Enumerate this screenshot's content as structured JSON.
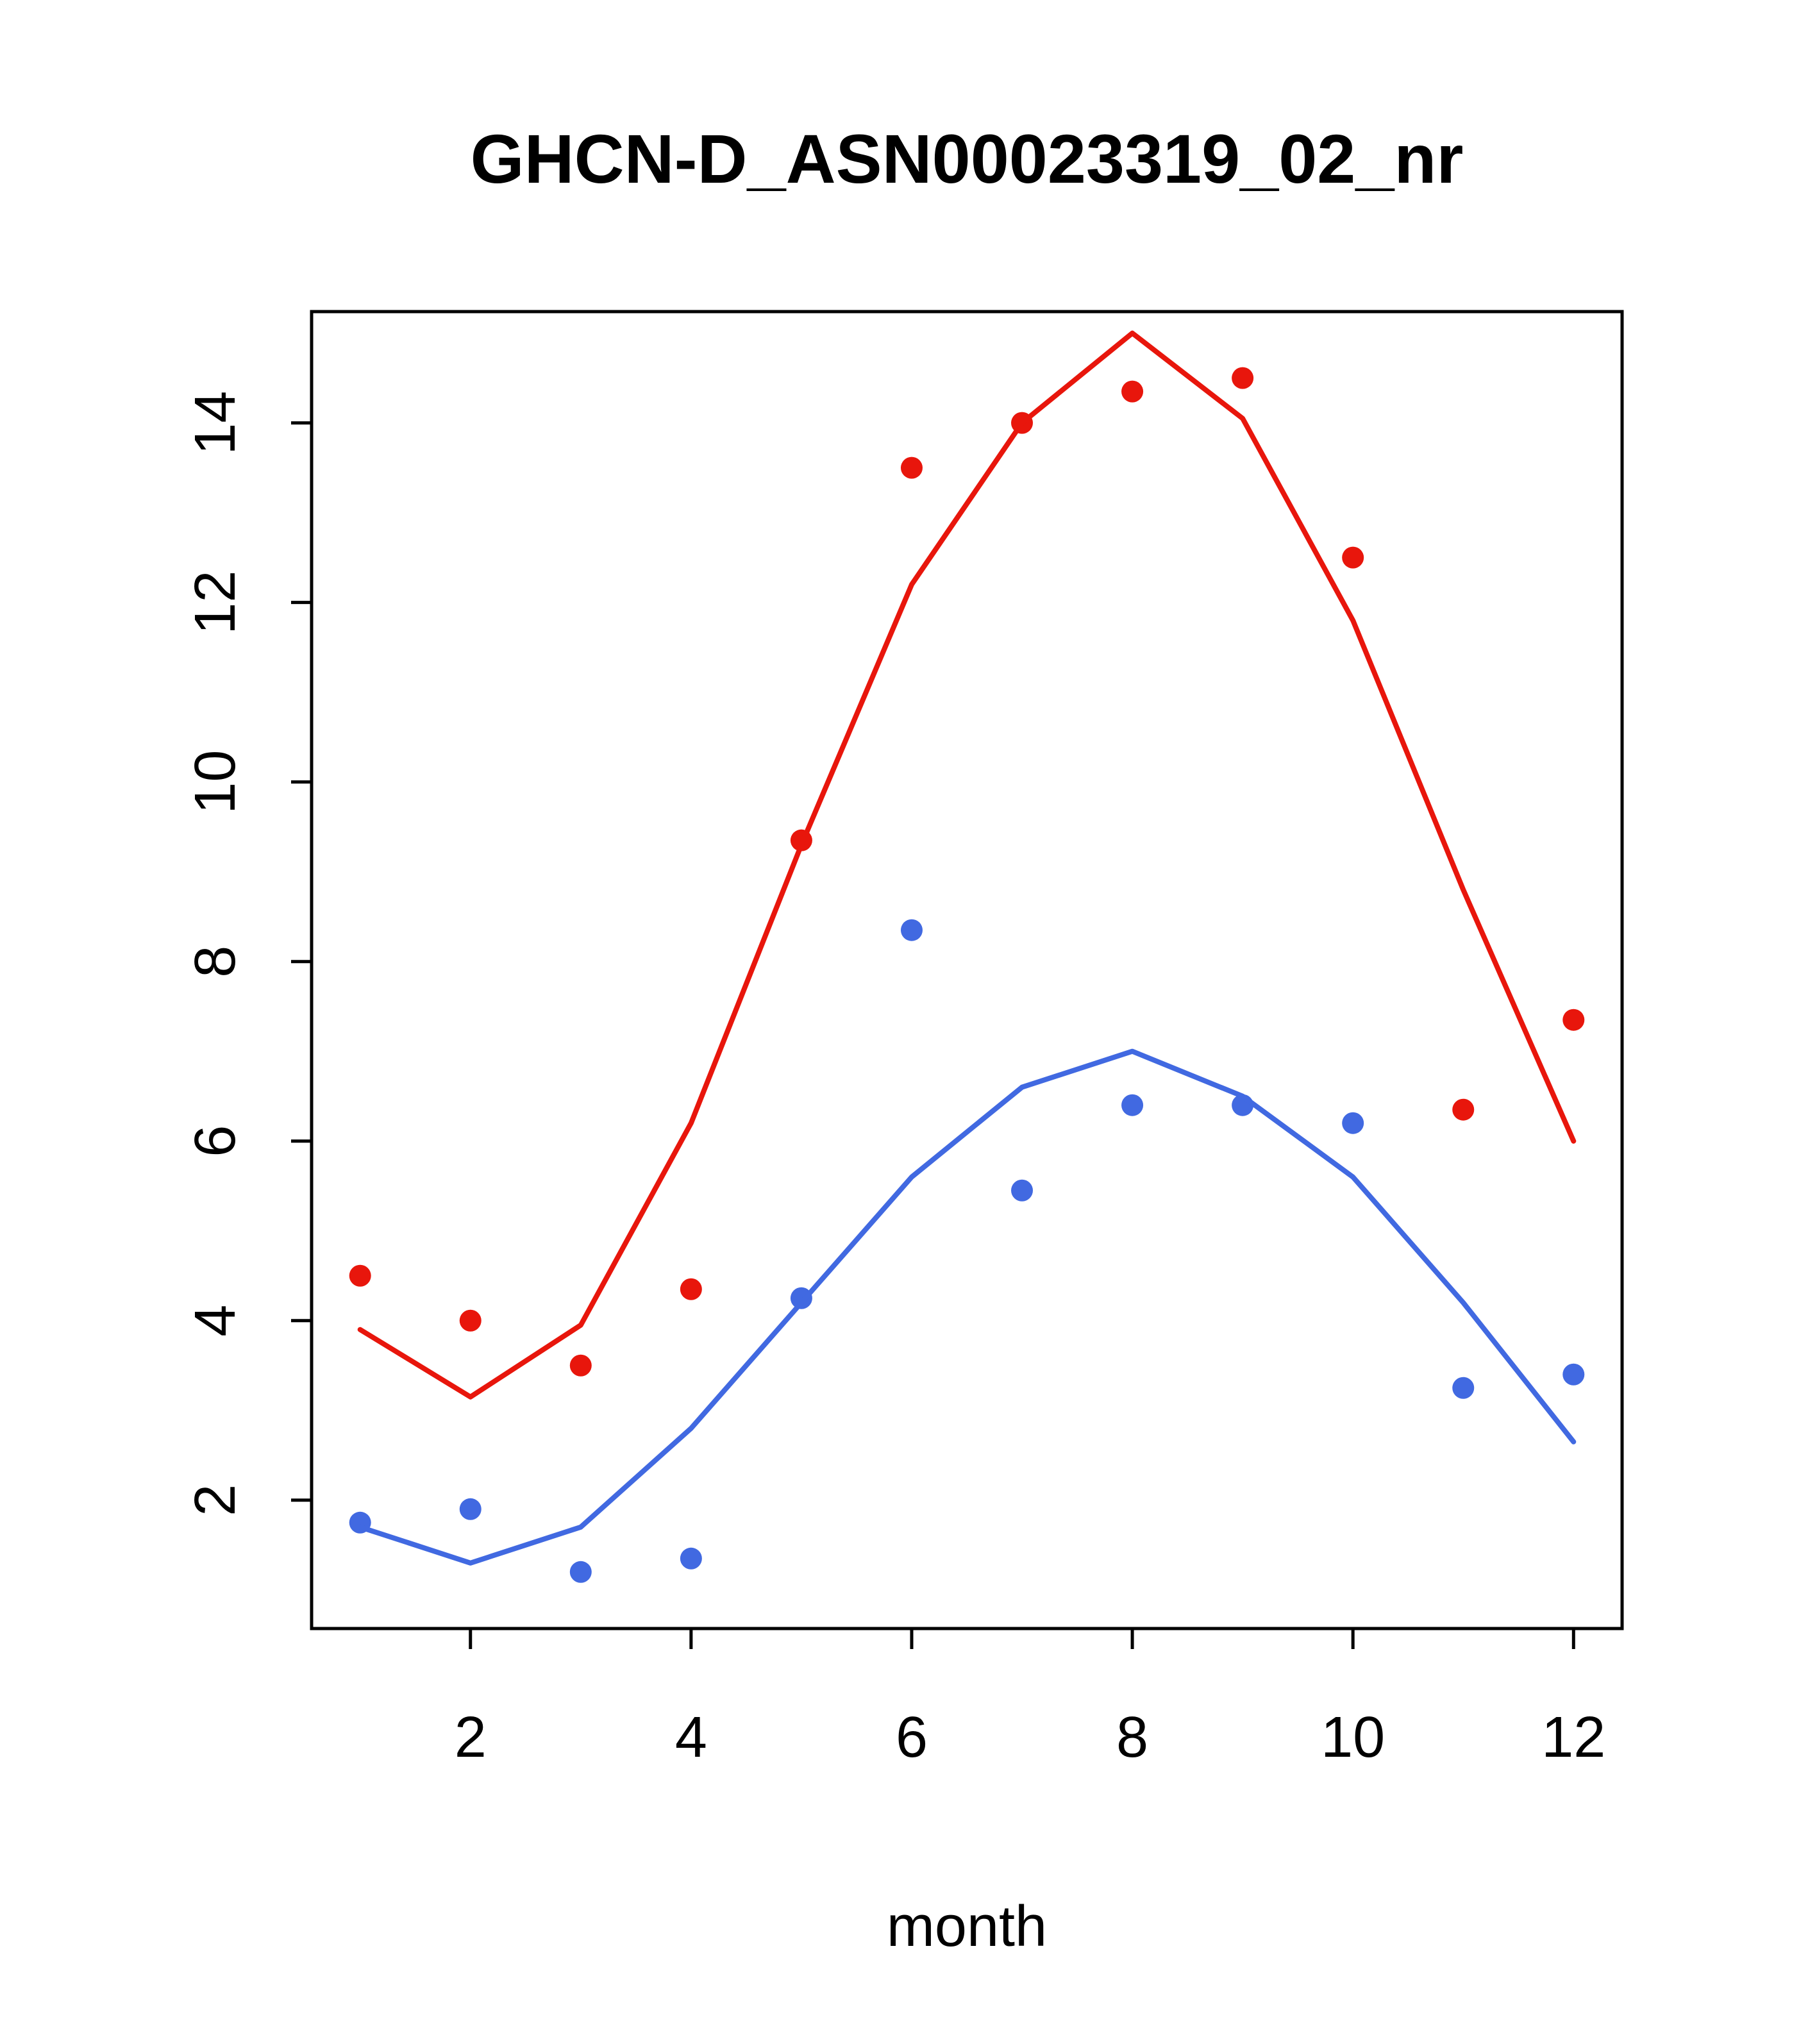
{
  "chart_data": {
    "type": "scatter",
    "title": "GHCN-D_ASN00023319_02_nr",
    "xlabel": "month",
    "ylabel": "",
    "x": [
      1,
      2,
      3,
      4,
      5,
      6,
      7,
      8,
      9,
      10,
      11,
      12
    ],
    "xlim": [
      0.56,
      12.44
    ],
    "ylim": [
      0.57,
      15.24
    ],
    "x_ticks": [
      2,
      4,
      6,
      8,
      10,
      12
    ],
    "y_ticks": [
      2,
      4,
      6,
      8,
      10,
      12,
      14
    ],
    "grid": "off",
    "legend": "none",
    "colors": {
      "red_series": "#e8160c",
      "blue_series": "#4169e1",
      "axis": "#000000",
      "background": "#ffffff"
    },
    "series": [
      {
        "name": "red-observed-points",
        "kind": "points",
        "color": "#e8160c",
        "values": [
          4.5,
          4.0,
          3.5,
          4.35,
          9.35,
          13.5,
          14.0,
          14.35,
          14.5,
          12.5,
          6.35,
          7.35
        ]
      },
      {
        "name": "red-trend-line",
        "kind": "line",
        "color": "#e8160c",
        "values": [
          3.9,
          3.15,
          3.95,
          6.2,
          9.3,
          12.2,
          14.0,
          15.0,
          14.05,
          11.8,
          8.8,
          6.0
        ]
      },
      {
        "name": "blue-observed-points",
        "kind": "points",
        "color": "#4169e1",
        "values": [
          1.75,
          1.9,
          1.2,
          1.35,
          4.25,
          8.35,
          5.45,
          6.4,
          6.4,
          6.2,
          3.25,
          3.4
        ]
      },
      {
        "name": "blue-trend-line",
        "kind": "line",
        "color": "#4169e1",
        "values": [
          1.7,
          1.3,
          1.7,
          2.8,
          4.2,
          5.6,
          6.6,
          7.0,
          6.5,
          5.6,
          4.2,
          2.65
        ]
      }
    ]
  }
}
